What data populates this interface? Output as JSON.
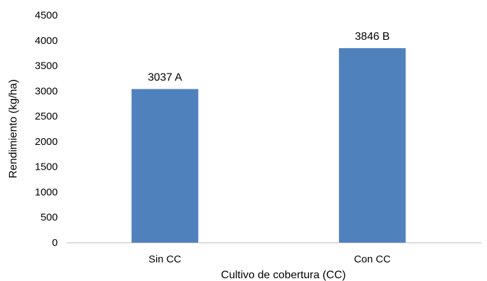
{
  "chart_data": {
    "type": "bar",
    "categories": [
      "Sin CC",
      "Con CC"
    ],
    "values": [
      3037,
      3846
    ],
    "data_labels": [
      "3037 A",
      "3846 B"
    ],
    "title": "",
    "xlabel": "Cultivo de cobertura (CC)",
    "ylabel": "Rendimiento (kg/ha)",
    "ylim": [
      0,
      4500
    ],
    "yticks": [
      "0",
      "500",
      "1000",
      "1500",
      "2000",
      "2500",
      "3000",
      "3500",
      "4000",
      "4500"
    ],
    "grid": false,
    "legend": "none",
    "bar_color": "#4F81BD",
    "axis_color": "#BFBFBF"
  }
}
